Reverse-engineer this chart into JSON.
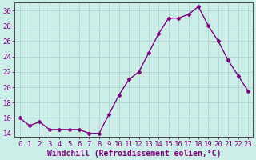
{
  "x": [
    0,
    1,
    2,
    3,
    4,
    5,
    6,
    7,
    8,
    9,
    10,
    11,
    12,
    13,
    14,
    15,
    16,
    17,
    18,
    19,
    20,
    21,
    22,
    23
  ],
  "y": [
    16.0,
    15.0,
    15.5,
    14.5,
    14.5,
    14.5,
    14.5,
    14.0,
    14.0,
    16.5,
    19.0,
    21.0,
    22.0,
    24.5,
    27.0,
    29.0,
    29.0,
    29.5,
    30.5,
    28.0,
    26.0,
    23.5,
    21.5,
    19.5
  ],
  "line_color": "#800080",
  "marker": "D",
  "marker_size": 2.5,
  "bg_color": "#cceee8",
  "grid_color": "#aacccc",
  "xlabel": "Windchill (Refroidissement éolien,°C)",
  "ylim": [
    13.5,
    31.0
  ],
  "xlim": [
    -0.5,
    23.5
  ],
  "yticks": [
    14,
    16,
    18,
    20,
    22,
    24,
    26,
    28,
    30
  ],
  "xticks": [
    0,
    1,
    2,
    3,
    4,
    5,
    6,
    7,
    8,
    9,
    10,
    11,
    12,
    13,
    14,
    15,
    16,
    17,
    18,
    19,
    20,
    21,
    22,
    23
  ],
  "tick_color": "#800080",
  "label_color": "#800080",
  "font_size": 6.5,
  "xlabel_fontsize": 7.0,
  "lw": 1.0
}
